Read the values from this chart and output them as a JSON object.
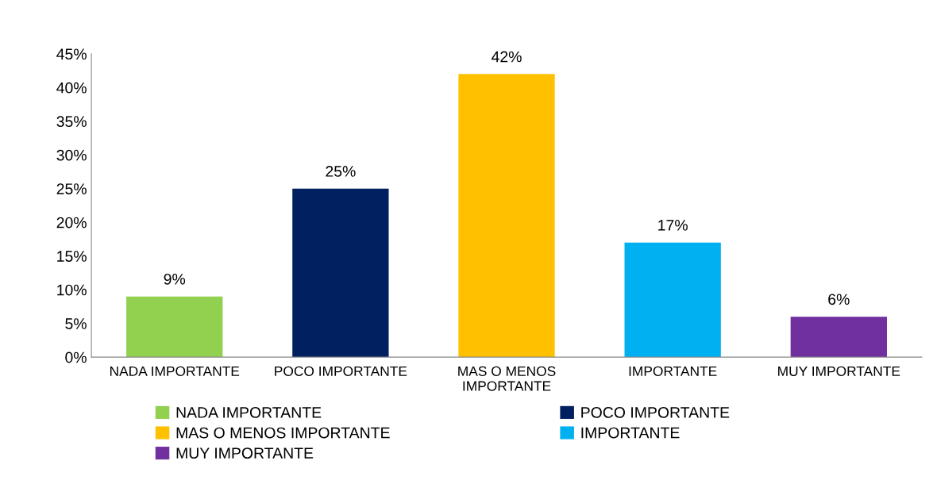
{
  "chart_data": {
    "type": "bar",
    "categories": [
      "NADA IMPORTANTE",
      "POCO IMPORTANTE",
      "MAS O MENOS IMPORTANTE",
      "IMPORTANTE",
      "MUY IMPORTANTE"
    ],
    "series": [
      {
        "name": "NADA IMPORTANTE",
        "color": "#92d050",
        "values": [
          9,
          null,
          null,
          null,
          null
        ],
        "value_labels": [
          "9%",
          null,
          null,
          null,
          null
        ]
      },
      {
        "name": "POCO IMPORTANTE",
        "color": "#002060",
        "values": [
          null,
          25,
          null,
          null,
          null
        ],
        "value_labels": [
          null,
          "25%",
          null,
          null,
          null
        ]
      },
      {
        "name": "MAS O MENOS IMPORTANTE",
        "color": "#ffc000",
        "values": [
          null,
          null,
          42,
          null,
          null
        ],
        "value_labels": [
          null,
          null,
          "42%",
          null,
          null
        ]
      },
      {
        "name": "IMPORTANTE",
        "color": "#00b0f0",
        "values": [
          null,
          null,
          null,
          17,
          null
        ],
        "value_labels": [
          null,
          null,
          null,
          "17%",
          null
        ]
      },
      {
        "name": "MUY IMPORTANTE",
        "color": "#7030a0",
        "values": [
          null,
          null,
          null,
          null,
          6
        ],
        "value_labels": [
          null,
          null,
          null,
          null,
          "6%"
        ]
      }
    ],
    "ylim": [
      0,
      45
    ],
    "yticks": [
      {
        "value": 0,
        "label": "0%"
      },
      {
        "value": 5,
        "label": "5%"
      },
      {
        "value": 10,
        "label": "10%"
      },
      {
        "value": 15,
        "label": "15%"
      },
      {
        "value": 20,
        "label": "20%"
      },
      {
        "value": 25,
        "label": "25%"
      },
      {
        "value": 30,
        "label": "30%"
      },
      {
        "value": 35,
        "label": "35%"
      },
      {
        "value": 40,
        "label": "40%"
      },
      {
        "value": 45,
        "label": "45%"
      }
    ],
    "grid": false,
    "legend": "bottom"
  }
}
